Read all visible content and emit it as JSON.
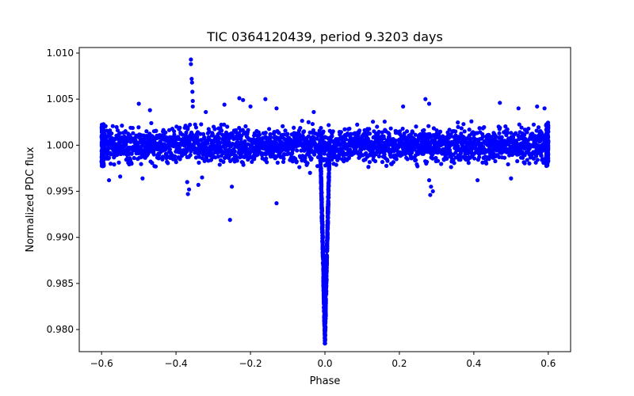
{
  "chart_data": {
    "type": "scatter",
    "title": "TIC 0364120439, period 9.3203 days",
    "xlabel": "Phase",
    "ylabel": "Normalized PDC flux",
    "xlim": [
      -0.66,
      0.66
    ],
    "ylim": [
      0.9776,
      1.0106
    ],
    "xticks": [
      -0.6,
      -0.4,
      -0.2,
      0.0,
      0.2,
      0.4,
      0.6
    ],
    "xtick_labels": [
      "−0.6",
      "−0.4",
      "−0.2",
      "0.0",
      "0.2",
      "0.4",
      "0.6"
    ],
    "yticks": [
      0.98,
      0.985,
      0.99,
      0.995,
      1.0,
      1.005,
      1.01
    ],
    "ytick_labels": [
      "0.980",
      "0.985",
      "0.990",
      "0.995",
      "1.000",
      "1.005",
      "1.010"
    ],
    "grid": false,
    "marker_color": "#0000ff",
    "series": [
      {
        "name": "PDC flux",
        "baseline": 1.0,
        "scatter": 0.0012,
        "band": [
          0.9975,
          1.0027
        ],
        "phase_range": [
          -0.6,
          0.6
        ],
        "transit": {
          "center": 0.0,
          "depth": 0.021,
          "min_flux": 0.9785,
          "half_width": 0.013
        },
        "outliers": [
          [
            -0.36,
            1.0093
          ],
          [
            -0.36,
            1.0088
          ],
          [
            -0.358,
            1.0072
          ],
          [
            -0.357,
            1.0068
          ],
          [
            -0.356,
            1.0058
          ],
          [
            -0.355,
            1.0048
          ],
          [
            -0.355,
            1.0042
          ],
          [
            -0.5,
            1.0045
          ],
          [
            -0.47,
            1.0038
          ],
          [
            -0.32,
            1.0036
          ],
          [
            -0.27,
            1.0044
          ],
          [
            -0.23,
            1.0051
          ],
          [
            -0.22,
            1.0049
          ],
          [
            -0.2,
            1.0042
          ],
          [
            -0.16,
            1.005
          ],
          [
            -0.13,
            1.004
          ],
          [
            -0.03,
            1.0036
          ],
          [
            0.27,
            1.005
          ],
          [
            0.28,
            1.0045
          ],
          [
            0.21,
            1.0042
          ],
          [
            0.47,
            1.0046
          ],
          [
            0.52,
            1.004
          ],
          [
            0.57,
            1.0042
          ],
          [
            0.59,
            1.004
          ],
          [
            -0.58,
            0.9962
          ],
          [
            -0.55,
            0.9966
          ],
          [
            -0.49,
            0.9964
          ],
          [
            -0.37,
            0.996
          ],
          [
            -0.365,
            0.9952
          ],
          [
            -0.368,
            0.9947
          ],
          [
            -0.33,
            0.9965
          ],
          [
            -0.34,
            0.9957
          ],
          [
            -0.25,
            0.9955
          ],
          [
            -0.255,
            0.9919
          ],
          [
            -0.13,
            0.9937
          ],
          [
            -0.04,
            0.997
          ],
          [
            0.28,
            0.9962
          ],
          [
            0.285,
            0.9955
          ],
          [
            0.29,
            0.995
          ],
          [
            0.283,
            0.9946
          ],
          [
            0.41,
            0.9962
          ],
          [
            0.5,
            0.9964
          ]
        ]
      }
    ]
  }
}
